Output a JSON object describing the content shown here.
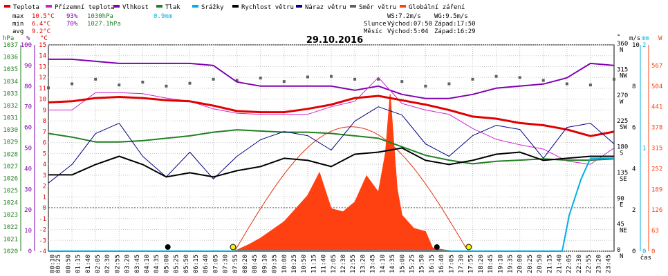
{
  "legend": [
    {
      "name": "Teplota",
      "color": "#e00000"
    },
    {
      "name": "Přízemní teplota",
      "color": "#d020d0"
    },
    {
      "name": "Vlhkost",
      "color": "#8000b0"
    },
    {
      "name": "Tlak",
      "color": "#208020"
    },
    {
      "name": "Srážky",
      "color": "#00b0e0"
    },
    {
      "name": "Rychlost větru",
      "color": "#000000"
    },
    {
      "name": "Náraz větru",
      "color": "#000080"
    },
    {
      "name": "Směr větru",
      "color": "#606060"
    },
    {
      "name": "Globální záření",
      "color": "#ff4010"
    }
  ],
  "stats": {
    "max": {
      "label": "max",
      "temp": "10.5°C",
      "hum": "93%",
      "press": "1030hPa",
      "rain": "0.9mm"
    },
    "min": {
      "label": "min",
      "temp": "6.4°C",
      "hum": "70%",
      "press": "1027.1hPa"
    },
    "avg": {
      "label": "avg",
      "temp": "9.2°C"
    }
  },
  "wind_info": {
    "ws": "WS:7.2m/s",
    "wg": "WG:9.5m/s"
  },
  "sun_info": {
    "label": "Slunce",
    "rise": "Východ:07:50",
    "set": "Západ:17:50"
  },
  "moon_info": {
    "label": "Měsíc",
    "rise": "Východ:5:04",
    "set": "Západ:16:29"
  },
  "axis_units": {
    "hpa": "hPa",
    "pct": "%",
    "degc": "°C",
    "deg": "°",
    "ms": "m/s",
    "mm": "mm",
    "w": "W"
  },
  "chart_data": {
    "type": "line",
    "title": "29.10.2016",
    "xlabel": "čas",
    "x_ticks": [
      "00:10",
      "00:25",
      "00:50",
      "01:15",
      "01:40",
      "02:05",
      "02:30",
      "02:55",
      "03:20",
      "03:45",
      "04:10",
      "04:35",
      "05:00",
      "05:25",
      "05:50",
      "06:15",
      "06:40",
      "07:05",
      "07:30",
      "07:55",
      "08:20",
      "08:45",
      "09:10",
      "09:35",
      "10:00",
      "10:25",
      "10:50",
      "11:15",
      "11:40",
      "12:05",
      "12:30",
      "12:55",
      "13:20",
      "13:45",
      "14:10",
      "14:35",
      "15:00",
      "15:25",
      "15:50",
      "16:15",
      "16:40",
      "17:05",
      "17:30",
      "17:55",
      "18:20",
      "18:45",
      "19:10",
      "19:35",
      "20:00",
      "20:25",
      "20:50",
      "21:15",
      "21:40",
      "22:05",
      "22:30",
      "22:55",
      "23:20",
      "23:45"
    ],
    "axes": {
      "pressure_hpa": {
        "ticks": [
          "1020",
          "1021",
          "1022",
          "1023",
          "1024",
          "1025",
          "1026",
          "1027",
          "1028",
          "1029",
          "1030",
          "1031",
          "1032",
          "1033",
          "1034",
          "1035",
          "1036",
          "1037"
        ],
        "ylim": [
          1020,
          1037
        ]
      },
      "humidity_pct": {
        "ticks": [
          "0",
          "10",
          "20",
          "30",
          "40",
          "50",
          "60",
          "70",
          "80",
          "90",
          "100"
        ],
        "ylim": [
          0,
          100
        ]
      },
      "temperature_c": {
        "ticks": [
          "-4",
          "-3",
          "-2",
          "-1",
          "0",
          "1",
          "2",
          "3",
          "4",
          "5",
          "6",
          "7",
          "8",
          "9",
          "10",
          "11",
          "12",
          "13",
          "14",
          "15"
        ],
        "ylim": [
          -4,
          15
        ]
      },
      "wind_dir_deg": {
        "ticks": [
          {
            "deg": "0",
            "dir": "N"
          },
          {
            "deg": "45",
            "dir": "NE"
          },
          {
            "deg": "90",
            "dir": "E"
          },
          {
            "deg": "135",
            "dir": "SE"
          },
          {
            "deg": "180",
            "dir": "S"
          },
          {
            "deg": "225",
            "dir": "SW"
          },
          {
            "deg": "270",
            "dir": "W"
          },
          {
            "deg": "315",
            "dir": "NW"
          },
          {
            "deg": "360",
            "dir": "N"
          }
        ],
        "ylim": [
          0,
          360
        ]
      },
      "wind_ms": {
        "ticks": [
          "0",
          "2",
          "4",
          "6",
          "8",
          "10"
        ],
        "ylim": [
          0,
          10
        ]
      },
      "rain_mm": {
        "ticks": [
          "0",
          "1",
          "2"
        ],
        "ylim": [
          0,
          2
        ]
      },
      "radiation_w": {
        "ticks": [
          "0",
          "63",
          "126",
          "189",
          "252",
          "315",
          "378",
          "441",
          "504",
          "567"
        ],
        "ylim": [
          0,
          630
        ]
      }
    },
    "series": [
      {
        "name": "Teplota",
        "axis": "temperature_c",
        "x": [
          0,
          1,
          2,
          3,
          4,
          5,
          6,
          7,
          8,
          9,
          10,
          11,
          12,
          13,
          14,
          15,
          16,
          17,
          18,
          19,
          20,
          21,
          22,
          23,
          24
        ],
        "values": [
          9.7,
          9.8,
          10.1,
          10.2,
          10.1,
          9.9,
          9.8,
          9.4,
          8.9,
          8.8,
          8.8,
          9.1,
          9.5,
          10.1,
          10.3,
          9.9,
          9.5,
          9.0,
          8.4,
          8.2,
          7.8,
          7.6,
          7.2,
          6.6,
          7.0
        ]
      },
      {
        "name": "Přízemní teplota",
        "axis": "temperature_c",
        "x": [
          0,
          1,
          2,
          3,
          4,
          5,
          6,
          7,
          8,
          9,
          10,
          11,
          12,
          13,
          14,
          15,
          16,
          17,
          18,
          19,
          20,
          21,
          22,
          23,
          24
        ],
        "values": [
          9.0,
          9.0,
          10.6,
          10.6,
          10.5,
          10.1,
          9.8,
          9.1,
          8.7,
          8.6,
          8.6,
          8.6,
          9.3,
          9.8,
          12.0,
          9.6,
          9.0,
          8.6,
          7.3,
          6.3,
          5.8,
          5.4,
          4.3,
          4.0,
          5.5
        ]
      },
      {
        "name": "Vlhkost",
        "axis": "humidity_pct",
        "x": [
          0,
          1,
          2,
          3,
          4,
          5,
          6,
          7,
          8,
          9,
          10,
          11,
          12,
          13,
          14,
          15,
          16,
          17,
          18,
          19,
          20,
          21,
          22,
          23,
          24
        ],
        "values": [
          93,
          93,
          92,
          91,
          91,
          91,
          91,
          90,
          82,
          80,
          80,
          80,
          80,
          78,
          80,
          76,
          74,
          74,
          76,
          79,
          80,
          81,
          84,
          91,
          90
        ]
      },
      {
        "name": "Tlak",
        "axis": "pressure_hpa",
        "x": [
          0,
          1,
          2,
          3,
          4,
          5,
          6,
          7,
          8,
          9,
          10,
          11,
          12,
          13,
          14,
          15,
          16,
          17,
          18,
          19,
          20,
          21,
          22,
          23,
          24
        ],
        "values": [
          1029.7,
          1029.4,
          1029.0,
          1029.0,
          1029.1,
          1029.3,
          1029.5,
          1029.8,
          1030.0,
          1029.9,
          1029.8,
          1029.8,
          1029.7,
          1029.5,
          1029.3,
          1028.6,
          1027.9,
          1027.5,
          1027.2,
          1027.4,
          1027.5,
          1027.6,
          1027.5,
          1027.5,
          1027.6
        ]
      },
      {
        "name": "Srážky",
        "axis": "rain_mm",
        "x": [
          0,
          21.8,
          22.1,
          22.6,
          23.0,
          24
        ],
        "values": [
          0,
          0,
          0.35,
          0.7,
          0.9,
          0.9
        ]
      },
      {
        "name": "Rychlost větru",
        "axis": "wind_ms",
        "x": [
          0,
          1,
          2,
          3,
          4,
          5,
          6,
          7,
          8,
          9,
          10,
          11,
          12,
          13,
          14,
          15,
          16,
          17,
          18,
          19,
          20,
          21,
          22,
          23,
          24
        ],
        "values": [
          3.7,
          3.7,
          4.2,
          4.6,
          4.2,
          3.6,
          3.8,
          3.6,
          3.9,
          4.1,
          4.5,
          4.4,
          4.1,
          4.7,
          4.8,
          5.0,
          4.4,
          4.2,
          4.4,
          4.7,
          4.8,
          4.4,
          4.5,
          4.6,
          4.6
        ]
      },
      {
        "name": "Náraz větru",
        "axis": "wind_ms",
        "x": [
          0,
          1,
          2,
          3,
          4,
          5,
          6,
          7,
          8,
          9,
          10,
          11,
          12,
          13,
          14,
          15,
          16,
          17,
          18,
          19,
          20,
          21,
          22,
          23,
          24
        ],
        "values": [
          3.3,
          4.2,
          5.7,
          6.2,
          4.6,
          3.6,
          4.8,
          3.5,
          4.6,
          5.4,
          5.8,
          5.6,
          4.9,
          6.3,
          7.0,
          6.6,
          5.2,
          4.6,
          5.6,
          6.1,
          5.9,
          4.5,
          6.0,
          6.2,
          5.2
        ]
      },
      {
        "name": "Globální záření",
        "axis": "radiation_w",
        "x": [
          7.9,
          8.5,
          9,
          10,
          11,
          11.5,
          12,
          12.5,
          13,
          13.5,
          14,
          14.3,
          14.5,
          14.8,
          15,
          15.5,
          16,
          16.3,
          16.8,
          17.2
        ],
        "values": [
          0,
          20,
          40,
          90,
          170,
          240,
          130,
          120,
          150,
          230,
          180,
          300,
          480,
          190,
          110,
          70,
          60,
          10,
          4,
          0
        ]
      },
      {
        "name": "Směr větru",
        "axis": "wind_dir_deg",
        "x": [
          0,
          1,
          2,
          3,
          4,
          5,
          6,
          7,
          8,
          9,
          10,
          11,
          12,
          13,
          14,
          15,
          16,
          17,
          18,
          19,
          20,
          21,
          22,
          23,
          24
        ],
        "values": [
          285,
          292,
          300,
          290,
          295,
          288,
          293,
          300,
          298,
          302,
          296,
          304,
          305,
          300,
          300,
          296,
          288,
          292,
          300,
          305,
          303,
          298,
          292,
          290,
          300
        ]
      }
    ],
    "global_radiation_theoretical_max": "≈ 380 W/m² at 12:50",
    "markers": {
      "sunrise": "07:50",
      "sunset": "17:50",
      "moonrise": "05:04",
      "moonset": "16:29"
    }
  }
}
